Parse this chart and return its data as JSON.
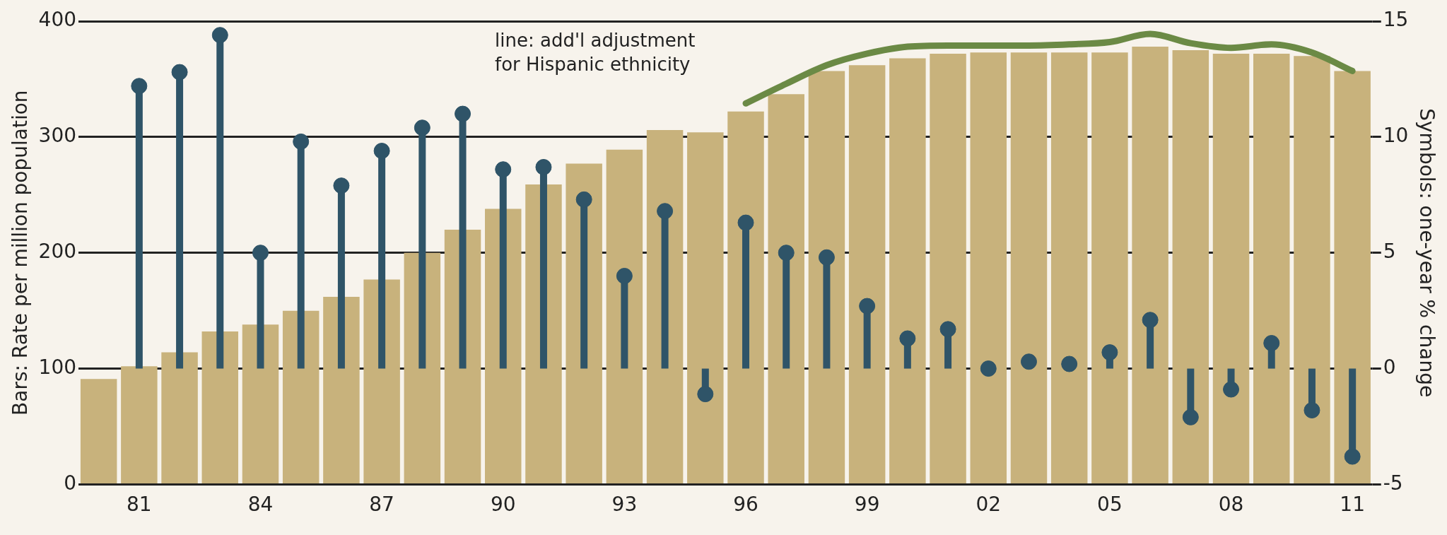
{
  "chart_data": {
    "type": "bar",
    "ylabel": "Bars: Rate per million population",
    "y2label": "Symbols: one-year % change",
    "categories": [
      null,
      "81",
      null,
      null,
      "84",
      null,
      null,
      "87",
      null,
      null,
      "90",
      null,
      null,
      "93",
      null,
      null,
      "96",
      null,
      null,
      "99",
      null,
      null,
      "02",
      null,
      null,
      "05",
      null,
      null,
      "08",
      null,
      null,
      "11"
    ],
    "series": [
      {
        "color": "#c8b27c",
        "values": [
          91,
          102,
          114,
          132,
          138,
          150,
          162,
          177,
          200,
          220,
          238,
          259,
          277,
          289,
          306,
          304,
          322,
          337,
          357,
          362,
          368,
          372,
          373,
          373,
          373,
          373,
          378,
          375,
          372,
          372,
          370,
          357
        ]
      },
      {
        "type": "line",
        "color": "#6b8a45",
        "values": [
          null,
          null,
          null,
          null,
          null,
          null,
          null,
          null,
          null,
          null,
          null,
          null,
          null,
          null,
          null,
          null,
          329,
          346,
          362,
          372,
          378,
          379,
          379,
          379,
          380,
          382,
          389,
          381,
          377,
          380,
          373,
          357
        ]
      },
      {
        "type": "lollipop",
        "axis": "y2",
        "color": "#2f5468",
        "marker": "circle",
        "values": [
          null,
          12.2,
          12.8,
          14.4,
          5.0,
          9.8,
          7.9,
          9.4,
          10.4,
          11.0,
          8.6,
          8.7,
          7.3,
          4.0,
          6.8,
          -1.1,
          6.3,
          5.0,
          4.8,
          2.7,
          1.3,
          1.7,
          0,
          0.3,
          0.2,
          0.7,
          2.1,
          -2.1,
          -0.9,
          1.1,
          -1.8,
          -3.8
        ]
      }
    ],
    "ylim": [
      0,
      400
    ],
    "yticks": [
      0,
      100,
      200,
      300,
      400
    ],
    "y2lim": [
      -5,
      15
    ],
    "y2ticks": [
      -5,
      0,
      5,
      10,
      15
    ],
    "grid": "y",
    "legend": false,
    "annotations": [
      "line: add'l adjustment for Hispanic ethnicity"
    ]
  }
}
